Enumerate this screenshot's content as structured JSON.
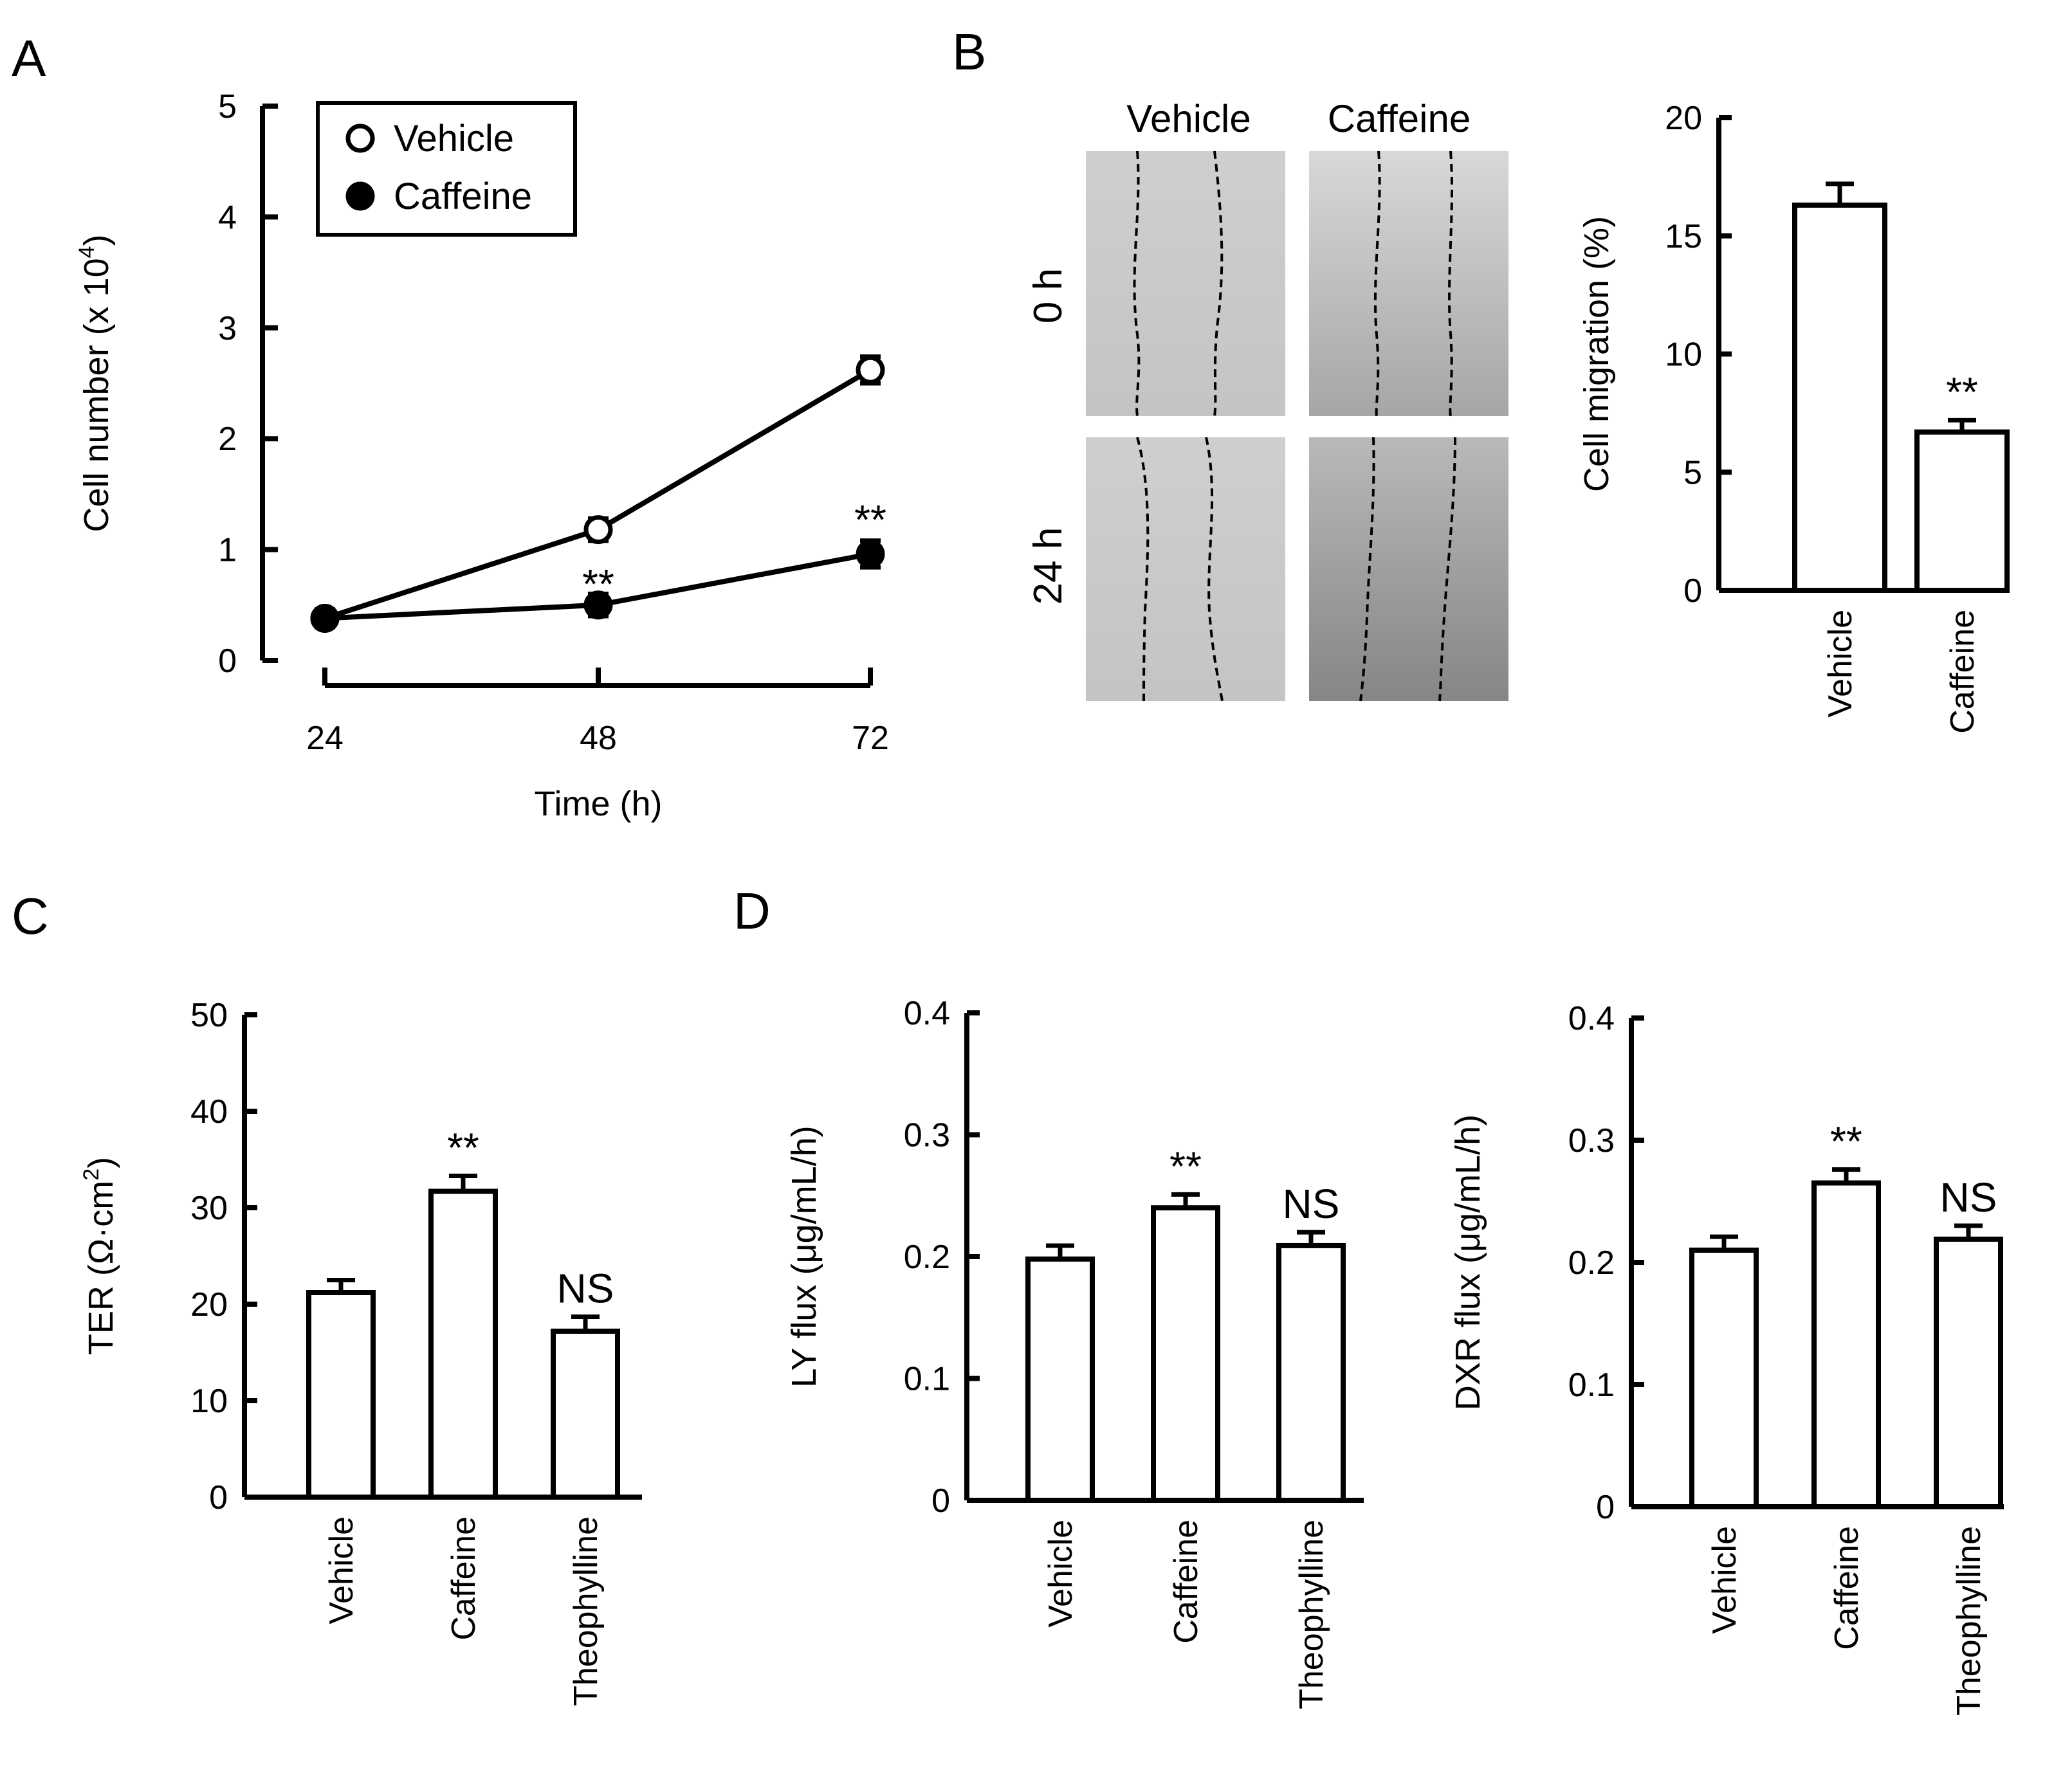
{
  "panel_letters": [
    "A",
    "B",
    "C",
    "D"
  ],
  "chart_data": [
    {
      "id": "A",
      "type": "line",
      "xlabel": "Time  (h)",
      "ylabel": "Cell number  (x 10",
      "ylabel_sup": "4",
      "ylabel_tail": ")",
      "x": [
        24,
        48,
        72
      ],
      "xticks": [
        "24",
        "48",
        "72"
      ],
      "yticks": [
        "0",
        "1",
        "2",
        "3",
        "4",
        "5"
      ],
      "ylim": [
        0,
        5
      ],
      "legend": "top-left",
      "series": [
        {
          "name": "Vehicle",
          "marker": "open-circle",
          "values": [
            0.38,
            1.18,
            2.62
          ],
          "errors": [
            0.08,
            0.1,
            0.12
          ]
        },
        {
          "name": "Caffeine",
          "marker": "filled-circle",
          "values": [
            0.38,
            0.5,
            0.96
          ],
          "errors": [
            0.08,
            0.1,
            0.12
          ]
        }
      ],
      "annotations": [
        {
          "x": 48,
          "text": "**"
        },
        {
          "x": 72,
          "text": "**"
        }
      ]
    },
    {
      "id": "B-images",
      "type": "table",
      "columns": [
        "Vehicle",
        "Caffeine"
      ],
      "rows": [
        "0 h",
        "24 h"
      ]
    },
    {
      "id": "B",
      "type": "bar",
      "ylabel": "Cell migration  (%)",
      "categories": [
        "Vehicle",
        "Caffeine"
      ],
      "values": [
        16.3,
        6.7
      ],
      "errors": [
        0.9,
        0.5
      ],
      "yticks": [
        "0",
        "5",
        "10",
        "15",
        "20"
      ],
      "ylim": [
        0,
        20
      ],
      "annotations": [
        "",
        "**"
      ]
    },
    {
      "id": "C",
      "type": "bar",
      "ylabel": "TER (Ω·cm",
      "ylabel_sup": "2",
      "ylabel_tail": ")",
      "categories": [
        "Vehicle",
        "Caffeine",
        "Theophylline"
      ],
      "values": [
        21.2,
        31.7,
        17.2
      ],
      "errors": [
        1.3,
        1.6,
        1.5
      ],
      "yticks": [
        "0",
        "10",
        "20",
        "30",
        "40",
        "50"
      ],
      "ylim": [
        0,
        50
      ],
      "annotations": [
        "",
        "**",
        "NS"
      ]
    },
    {
      "id": "D1",
      "type": "bar",
      "ylabel": "LY flux (μg/mL/h)",
      "categories": [
        "Vehicle",
        "Caffeine",
        "Theophylline"
      ],
      "values": [
        0.198,
        0.24,
        0.209
      ],
      "errors": [
        0.011,
        0.011,
        0.011
      ],
      "yticks": [
        "0",
        "0.1",
        "0.2",
        "0.3",
        "0.4"
      ],
      "ylim": [
        0,
        0.4
      ],
      "annotations": [
        "",
        "**",
        "NS"
      ]
    },
    {
      "id": "D2",
      "type": "bar",
      "ylabel": "DXR flux (μg/mL/h)",
      "categories": [
        "Vehicle",
        "Caffeine",
        "Theophylline"
      ],
      "values": [
        0.21,
        0.265,
        0.219
      ],
      "errors": [
        0.011,
        0.011,
        0.011
      ],
      "yticks": [
        "0",
        "0.1",
        "0.2",
        "0.3",
        "0.4"
      ],
      "ylim": [
        0,
        0.4
      ],
      "annotations": [
        "",
        "**",
        "NS"
      ]
    }
  ]
}
